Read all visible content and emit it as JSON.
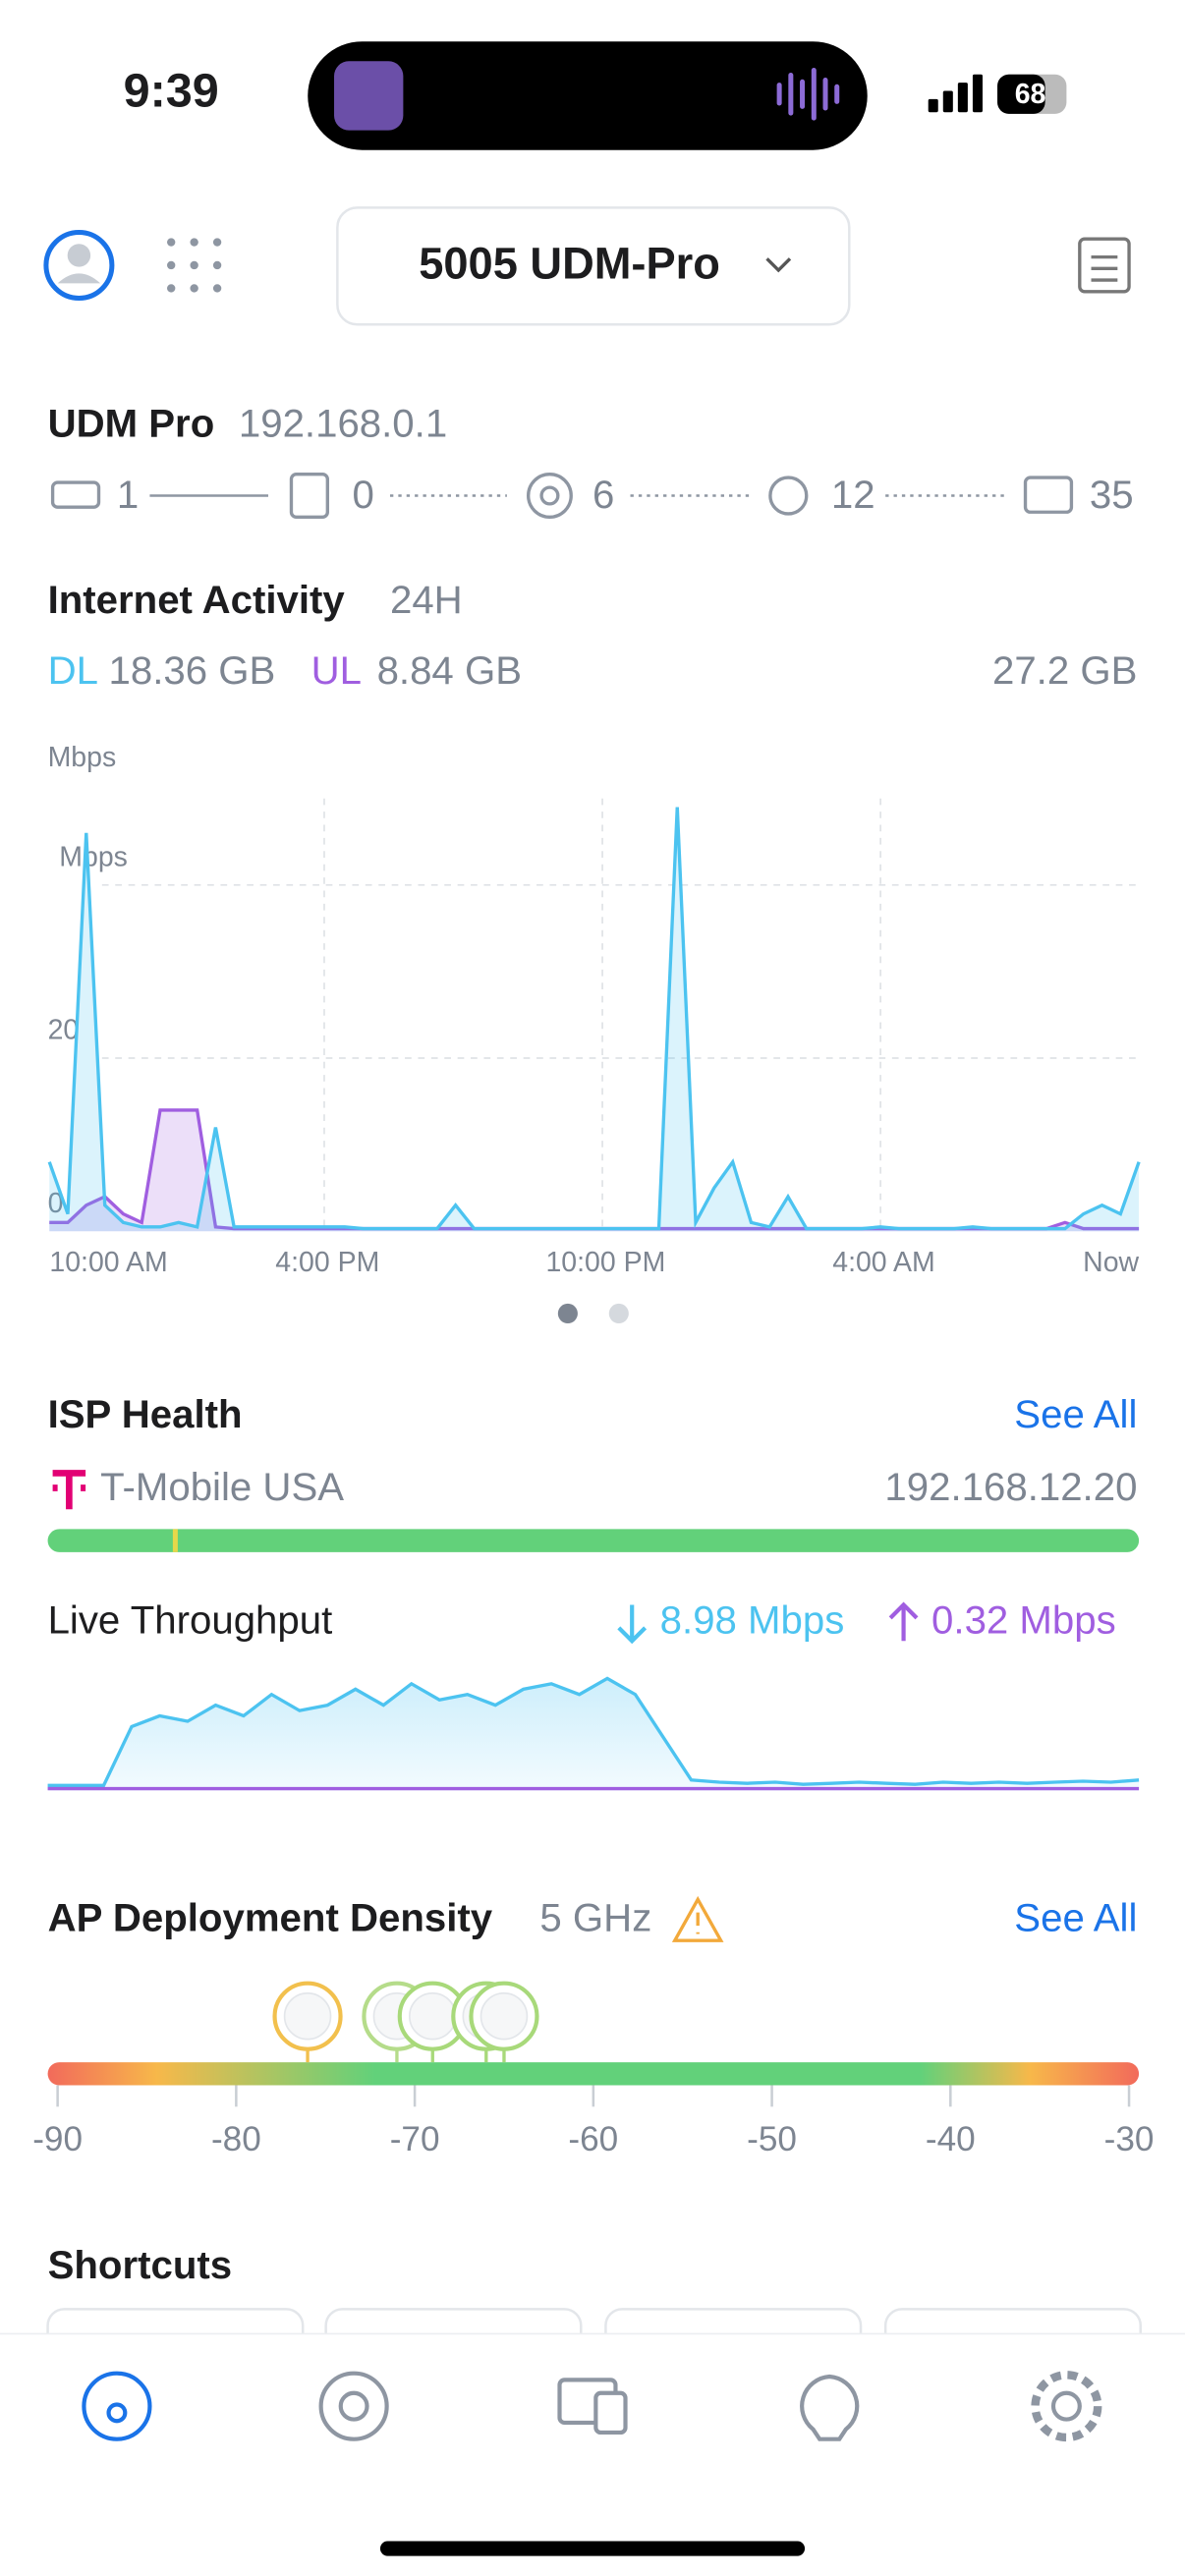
{
  "status_bar": {
    "time": "9:39",
    "battery": "68"
  },
  "header": {
    "site": "5005 UDM-Pro"
  },
  "device": {
    "name": "UDM Pro",
    "ip": "192.168.0.1",
    "counts": [
      1,
      0,
      6,
      12,
      35
    ]
  },
  "internet_activity": {
    "title": "Internet Activity",
    "period": "24H",
    "dl": "18.36 GB",
    "ul": "8.84 GB",
    "total": "27.2 GB"
  },
  "isp": {
    "title": "ISP Health",
    "see_all": "See All",
    "provider": "T-Mobile USA",
    "ip": "192.168.12.20"
  },
  "throughput": {
    "title": "Live Throughput",
    "down": "8.98 Mbps",
    "up": "0.32 Mbps"
  },
  "shortcuts": {
    "title": "Shortcuts"
  },
  "chart_data": [
    {
      "type": "line",
      "y_label": "Mbps",
      "ylim": [
        0,
        50
      ],
      "yticks": [
        0,
        20,
        {
          "value": 40,
          "label": "Mbps"
        }
      ],
      "x_labels": [
        "10:00 AM",
        "4:00 PM",
        "10:00 PM",
        "4:00 AM",
        "Now"
      ],
      "grid": true,
      "series": [
        {
          "name": "DL",
          "color": "#4cc3f0",
          "values": [
            8,
            2,
            46,
            3,
            1,
            0.5,
            0.5,
            1,
            0.5,
            12,
            0.5,
            0.5,
            0.5,
            0.5,
            0.5,
            0.5,
            0.5,
            0.3,
            0.3,
            0.3,
            0.3,
            0.3,
            3,
            0.3,
            0.3,
            0.3,
            0.3,
            0.3,
            0.3,
            0.3,
            0.3,
            0.3,
            0.3,
            0.3,
            49,
            1,
            5,
            8,
            1,
            0.5,
            4,
            0.3,
            0.3,
            0.3,
            0.3,
            0.5,
            0.3,
            0.3,
            0.3,
            0.3,
            0.5,
            0.3,
            0.3,
            0.3,
            0.3,
            0.3,
            2,
            3,
            2,
            8
          ]
        },
        {
          "name": "UL",
          "color": "#a05ee0",
          "values": [
            1,
            1,
            3,
            4,
            2,
            1,
            14,
            14,
            14,
            0.5,
            0.3,
            0.3,
            0.3,
            0.3,
            0.3,
            0.3,
            0.3,
            0.3,
            0.3,
            0.3,
            0.3,
            0.3,
            0.3,
            0.3,
            0.3,
            0.3,
            0.3,
            0.3,
            0.3,
            0.3,
            0.3,
            0.3,
            0.3,
            0.3,
            0.3,
            0.3,
            0.3,
            0.3,
            0.3,
            0.3,
            0.3,
            0.3,
            0.3,
            0.3,
            0.3,
            0.3,
            0.3,
            0.3,
            0.3,
            0.3,
            0.3,
            0.3,
            0.3,
            0.3,
            0.3,
            1,
            0.3,
            0.3,
            0.3,
            0.3
          ]
        }
      ]
    },
    {
      "type": "line",
      "ylim": [
        0,
        12
      ],
      "series": [
        {
          "color": "#4cc3f0",
          "values": [
            0.5,
            0.5,
            0.5,
            6,
            7,
            6.5,
            8,
            7,
            9,
            7.5,
            8,
            9.5,
            8,
            10,
            8.5,
            9,
            8,
            9.5,
            10,
            9,
            10.5,
            9,
            5,
            1,
            0.8,
            0.7,
            0.8,
            0.6,
            0.7,
            0.8,
            0.7,
            0.6,
            0.8,
            0.7,
            0.8,
            0.7,
            0.8,
            0.9,
            0.8,
            1
          ]
        },
        {
          "color": "#a05ee0",
          "values": [
            0.2,
            0.2,
            0.2,
            0.2,
            0.2,
            0.2,
            0.2,
            0.2,
            0.2,
            0.2,
            0.2,
            0.2,
            0.2,
            0.2,
            0.2,
            0.2,
            0.2,
            0.2,
            0.2,
            0.2,
            0.2,
            0.2,
            0.2,
            0.2,
            0.2,
            0.2,
            0.2,
            0.2,
            0.2,
            0.2,
            0.2,
            0.2,
            0.2,
            0.2,
            0.2,
            0.2,
            0.2,
            0.2,
            0.2,
            0.2
          ]
        }
      ]
    },
    {
      "type": "scatter",
      "title": "AP Deployment Density",
      "subtitle": "5 GHz",
      "see_all": "See All",
      "xlim": [
        -90,
        -30
      ],
      "xticks": [
        -90,
        -80,
        -70,
        -60,
        -50,
        -40,
        -30
      ],
      "x": [
        -76,
        -71,
        -69,
        -66,
        -65
      ],
      "colors": [
        "#f2c04d",
        "#b5dc8a",
        "#a8d97a",
        "#a8d97a",
        "#a8d97a"
      ]
    }
  ]
}
